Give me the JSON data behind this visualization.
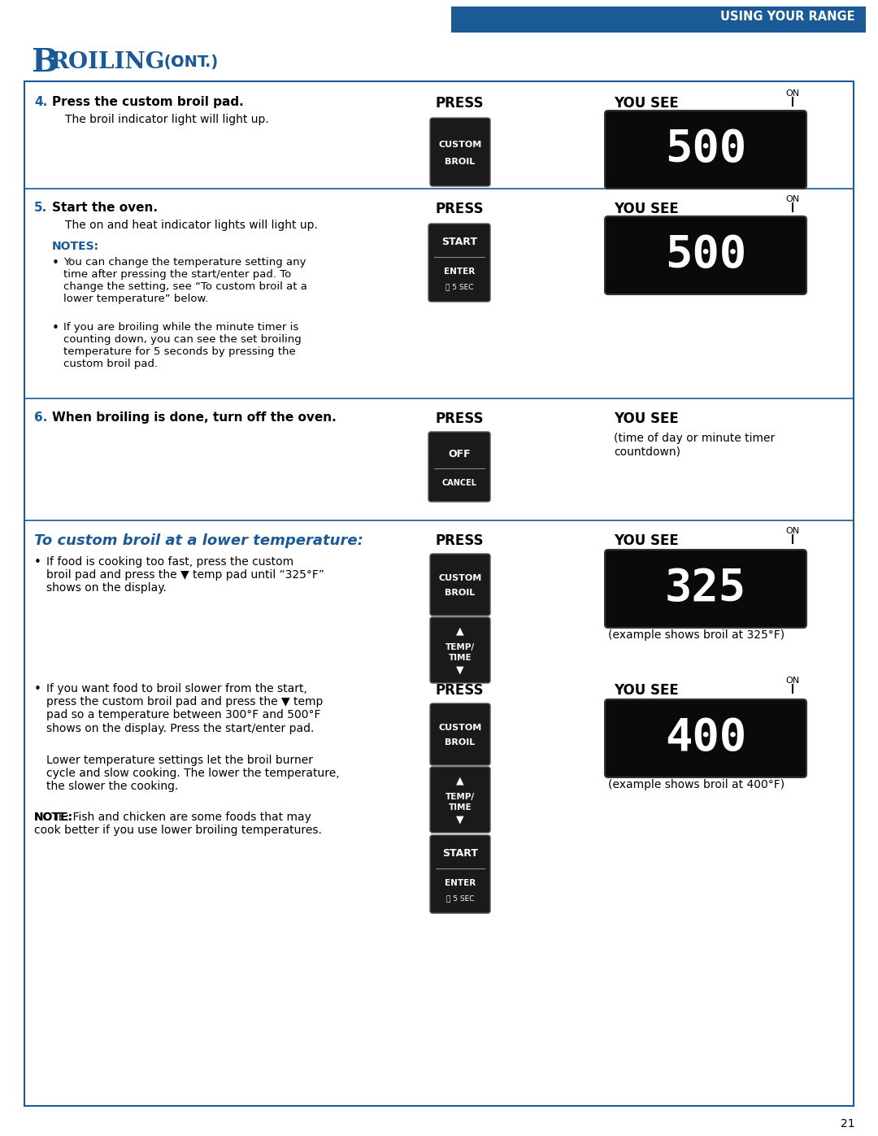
{
  "page_bg": "#ffffff",
  "header_bg": "#1a5a96",
  "header_text": "USING YOUR RANGE",
  "header_text_color": "#ffffff",
  "border_color": "#1a5a96",
  "title_big": "B",
  "title_rest": "ROILING",
  "title_cont": " (C",
  "title_cont2": "ONT",
  "title_cont3": ".)",
  "title_color": "#1a5a96",
  "section_line_color": "#1a5a96",
  "notes_color": "#1a5a96",
  "step_number_color": "#1a5a96",
  "page_number": "21",
  "sec7_title": "To custom broil at a lower temperature:",
  "sec7_title_color": "#1a5a96",
  "display_caption_325": "(example shows broil at 325°F)",
  "display_caption_400": "(example shows broil at 400°F)",
  "yousee_sub6": "(time of day or minute timer\ncountdown)"
}
